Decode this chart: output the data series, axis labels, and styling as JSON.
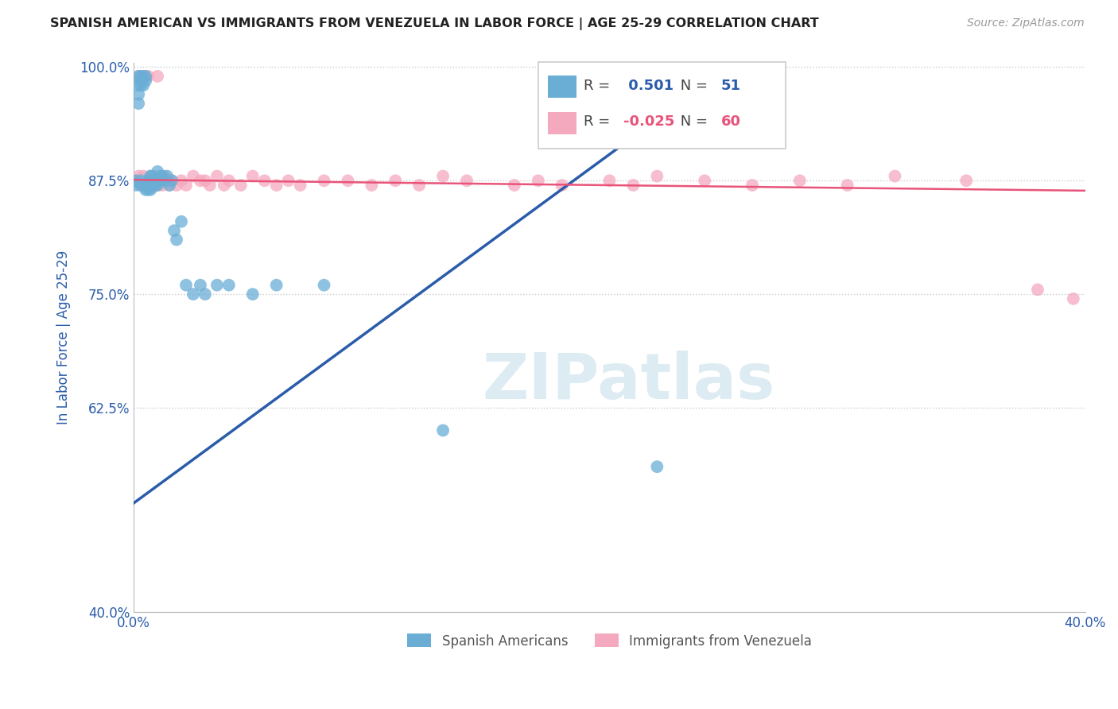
{
  "title": "SPANISH AMERICAN VS IMMIGRANTS FROM VENEZUELA IN LABOR FORCE | AGE 25-29 CORRELATION CHART",
  "source": "Source: ZipAtlas.com",
  "ylabel": "In Labor Force | Age 25-29",
  "xlim": [
    0.0,
    0.4
  ],
  "ylim": [
    0.4,
    1.005
  ],
  "yticks": [
    0.4,
    0.625,
    0.75,
    0.875,
    1.0
  ],
  "ytick_labels": [
    "40.0%",
    "62.5%",
    "75.0%",
    "87.5%",
    "100.0%"
  ],
  "xticks": [
    0.0,
    0.1,
    0.2,
    0.3,
    0.4
  ],
  "xtick_labels": [
    "0.0%",
    "",
    "",
    "",
    "40.0%"
  ],
  "blue_R": 0.501,
  "blue_N": 51,
  "pink_R": -0.025,
  "pink_N": 60,
  "blue_color": "#6aaed6",
  "pink_color": "#f4a9be",
  "trendline_blue": "#2a5caa",
  "trendline_pink": "#e8547a",
  "watermark": "ZIPatlas",
  "legend_blue_label": "Spanish Americans",
  "legend_pink_label": "Immigrants from Venezuela",
  "background_color": "#ffffff",
  "grid_color": "#cccccc",
  "title_color": "#222222",
  "axis_label_color": "#2a5caa",
  "tick_color": "#2a5caa",
  "blue_x": [
    0.001,
    0.001,
    0.002,
    0.002,
    0.002,
    0.002,
    0.003,
    0.003,
    0.003,
    0.003,
    0.003,
    0.004,
    0.004,
    0.004,
    0.005,
    0.005,
    0.005,
    0.005,
    0.006,
    0.006,
    0.006,
    0.007,
    0.007,
    0.007,
    0.008,
    0.008,
    0.009,
    0.009,
    0.01,
    0.01,
    0.011,
    0.011,
    0.012,
    0.013,
    0.014,
    0.015,
    0.016,
    0.017,
    0.018,
    0.02,
    0.022,
    0.025,
    0.028,
    0.03,
    0.035,
    0.04,
    0.05,
    0.06,
    0.08,
    0.13,
    0.22
  ],
  "blue_y": [
    0.875,
    0.87,
    0.99,
    0.98,
    0.97,
    0.96,
    0.99,
    0.985,
    0.98,
    0.875,
    0.87,
    0.99,
    0.98,
    0.87,
    0.99,
    0.985,
    0.87,
    0.865,
    0.875,
    0.87,
    0.865,
    0.88,
    0.875,
    0.865,
    0.88,
    0.87,
    0.875,
    0.87,
    0.885,
    0.87,
    0.88,
    0.875,
    0.88,
    0.875,
    0.88,
    0.87,
    0.875,
    0.82,
    0.81,
    0.83,
    0.76,
    0.75,
    0.76,
    0.75,
    0.76,
    0.76,
    0.75,
    0.76,
    0.76,
    0.6,
    0.56
  ],
  "pink_x": [
    0.001,
    0.002,
    0.002,
    0.003,
    0.003,
    0.004,
    0.004,
    0.005,
    0.005,
    0.006,
    0.006,
    0.007,
    0.008,
    0.008,
    0.009,
    0.01,
    0.01,
    0.011,
    0.012,
    0.013,
    0.014,
    0.015,
    0.016,
    0.018,
    0.02,
    0.022,
    0.025,
    0.028,
    0.03,
    0.032,
    0.035,
    0.038,
    0.04,
    0.045,
    0.05,
    0.055,
    0.06,
    0.065,
    0.07,
    0.08,
    0.09,
    0.1,
    0.11,
    0.12,
    0.13,
    0.14,
    0.16,
    0.17,
    0.18,
    0.2,
    0.21,
    0.22,
    0.24,
    0.26,
    0.28,
    0.3,
    0.32,
    0.35,
    0.38,
    0.395
  ],
  "pink_y": [
    0.875,
    0.99,
    0.88,
    0.985,
    0.87,
    0.88,
    0.87,
    0.99,
    0.87,
    0.99,
    0.87,
    0.88,
    0.875,
    0.868,
    0.875,
    0.99,
    0.87,
    0.875,
    0.87,
    0.88,
    0.875,
    0.87,
    0.875,
    0.87,
    0.875,
    0.87,
    0.88,
    0.875,
    0.875,
    0.87,
    0.88,
    0.87,
    0.875,
    0.87,
    0.88,
    0.875,
    0.87,
    0.875,
    0.87,
    0.875,
    0.875,
    0.87,
    0.875,
    0.87,
    0.88,
    0.875,
    0.87,
    0.875,
    0.87,
    0.875,
    0.87,
    0.88,
    0.875,
    0.87,
    0.875,
    0.87,
    0.88,
    0.875,
    0.755,
    0.745
  ]
}
